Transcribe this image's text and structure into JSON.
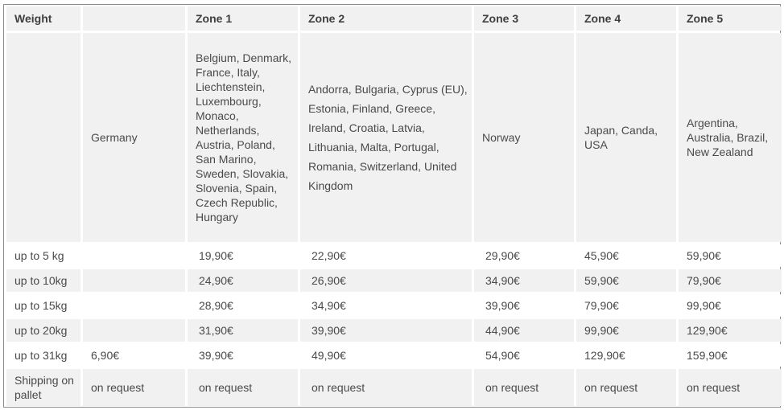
{
  "table": {
    "headers": [
      "Weight",
      "",
      "Zone 1",
      "Zone 2",
      "Zone 3",
      "Zone 4",
      "Zone 5"
    ],
    "destinations": {
      "label": "",
      "cells": [
        "Germany",
        "Belgium, Denmark, France, Italy, Liechtenstein, Luxembourg, Monaco, Netherlands, Austria, Poland, San Marino, Sweden, Slovakia, Slovenia, Spain, Czech Republic, Hungary",
        "Andorra, Bulgaria, Cyprus (EU), Estonia, Finland, Greece, Ireland, Croatia, Latvia, Lithuania, Malta, Portugal, Romania, Switzerland, United Kingdom",
        "Norway",
        "Japan, Canda, USA",
        "Argentina, Australia, Brazil, New Zealand"
      ]
    },
    "rows": [
      {
        "weight": "up to 5 kg",
        "prices": [
          "",
          "19,90€",
          "22,90€",
          "29,90€",
          "45,90€",
          "59,90€"
        ]
      },
      {
        "weight": "up to 10kg",
        "prices": [
          "",
          "24,90€",
          "26,90€",
          "34,90€",
          "59,90€",
          "79,90€"
        ]
      },
      {
        "weight": "up to 15kg",
        "prices": [
          "",
          "28,90€",
          "34,90€",
          "39,90€",
          "79,90€",
          "99,90€"
        ]
      },
      {
        "weight": "up to 20kg",
        "prices": [
          "",
          "31,90€",
          "39,90€",
          "44,90€",
          "99,90€",
          "129,90€"
        ]
      },
      {
        "weight": "up to 31kg",
        "prices": [
          "6,90€",
          "39,90€",
          "49,90€",
          "54,90€",
          "129,90€",
          "159,90€"
        ]
      },
      {
        "weight": "Shipping on pallet",
        "prices": [
          "on request",
          "on request",
          "on request",
          "on request",
          "on request",
          "on request"
        ]
      }
    ]
  }
}
